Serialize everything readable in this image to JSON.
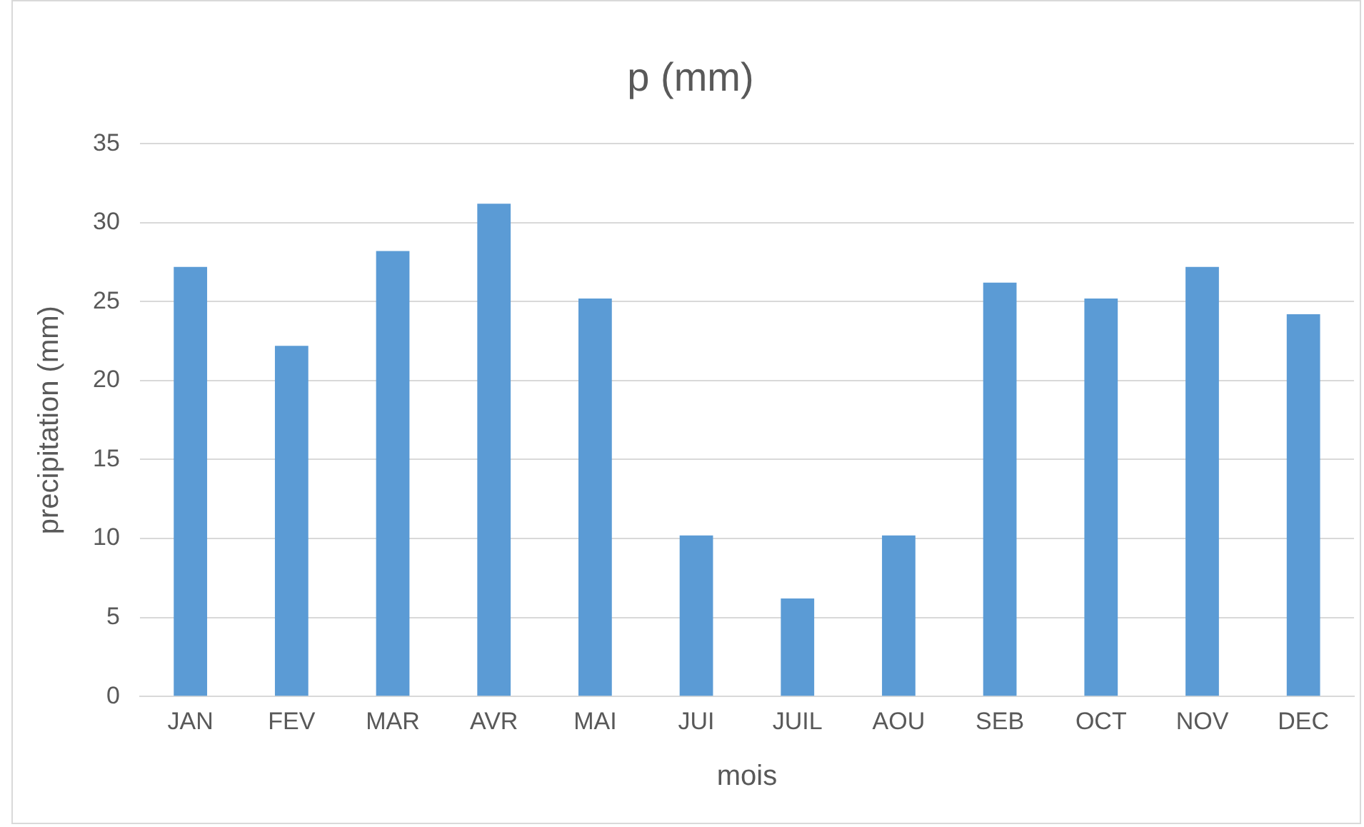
{
  "chart_data": {
    "type": "bar",
    "title": "p (mm)",
    "xlabel": "mois",
    "ylabel": "precipitation (mm)",
    "categories": [
      "JAN",
      "FEV",
      "MAR",
      "AVR",
      "MAI",
      "JUI",
      "JUIL",
      "AOU",
      "SEB",
      "OCT",
      "NOV",
      "DEC"
    ],
    "values": [
      27.2,
      22.2,
      28.2,
      31.2,
      25.2,
      10.2,
      6.2,
      10.2,
      26.2,
      25.2,
      27.2,
      24.2
    ],
    "color": "#5b9bd5",
    "ylim": [
      0,
      35
    ],
    "yticks": [
      0,
      5,
      10,
      15,
      20,
      25,
      30,
      35
    ],
    "grid": "y",
    "legend": false
  }
}
